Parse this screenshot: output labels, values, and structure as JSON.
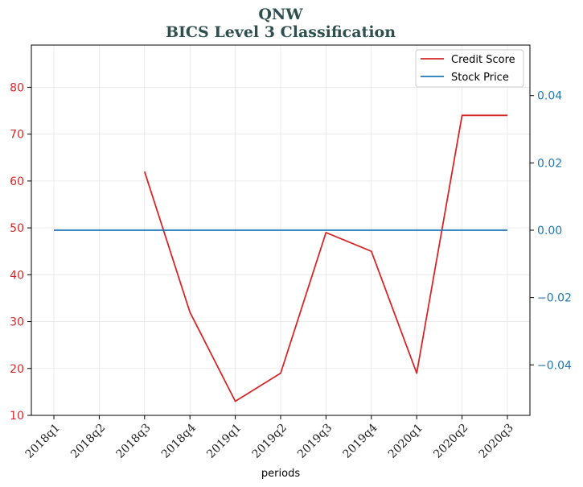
{
  "chart_data": {
    "type": "line",
    "title": "QNW",
    "subtitle": "BICS Level 3 Classification",
    "xlabel": "periods",
    "categories": [
      "2018q1",
      "2018q2",
      "2018q3",
      "2018q4",
      "2019q1",
      "2019q2",
      "2019q3",
      "2019q4",
      "2020q1",
      "2020q2",
      "2020q3"
    ],
    "left_axis": {
      "ylim": [
        10,
        89
      ],
      "ticks": [
        10,
        20,
        30,
        40,
        50,
        60,
        70,
        80
      ],
      "color": "#d62728"
    },
    "right_axis": {
      "ylim": [
        -0.055,
        0.055
      ],
      "ticks": [
        -0.04,
        -0.02,
        0.0,
        0.02,
        0.04
      ],
      "tick_labels": [
        "−0.04",
        "−0.02",
        "0.00",
        "0.02",
        "0.04"
      ],
      "color": "#1f77b4"
    },
    "series": [
      {
        "name": "Credit Score",
        "axis": "left",
        "color": "#d62728",
        "values": [
          null,
          null,
          62,
          32,
          13,
          19,
          49,
          45,
          19,
          74,
          74
        ]
      },
      {
        "name": "Stock Price",
        "axis": "right",
        "color": "#1f77b4",
        "values": [
          0,
          0,
          0,
          0,
          0,
          0,
          0,
          0,
          0,
          0,
          0
        ]
      }
    ],
    "grid": true,
    "legend": "top-right"
  }
}
